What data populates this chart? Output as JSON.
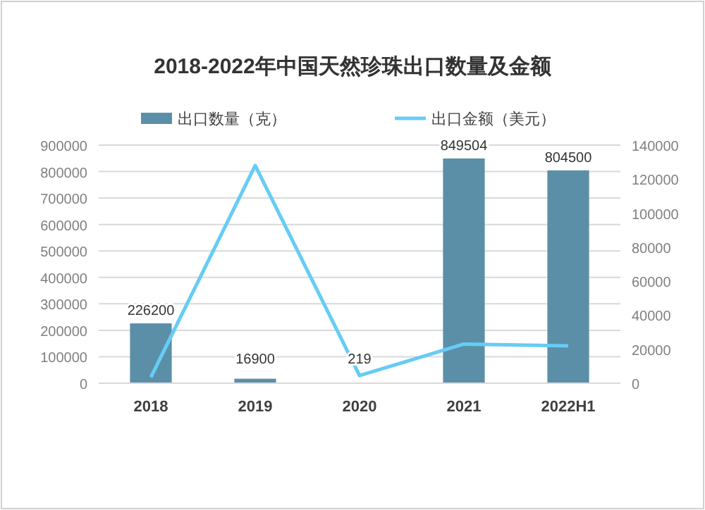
{
  "chart_data": {
    "type": "bar",
    "title": "2018-2022年中国天然珍珠出口数量及金额",
    "categories": [
      "2018",
      "2019",
      "2020",
      "2021",
      "2022H1"
    ],
    "series": [
      {
        "name": "出口数量（克）",
        "color": "#5b8fa8",
        "values": [
          226200,
          16900,
          219,
          849504,
          804500
        ],
        "value_labels": [
          "226200",
          "16900",
          "219",
          "849504",
          "804500"
        ]
      },
      {
        "name": "出口金额（美元）",
        "type": "line",
        "axis": "y2",
        "color": "#66ccf5",
        "values": [
          3500,
          128000,
          4500,
          23000,
          22000
        ]
      }
    ],
    "ylim": [
      0,
      900000
    ],
    "yticks": [
      0,
      100000,
      200000,
      300000,
      400000,
      500000,
      600000,
      700000,
      800000,
      900000
    ],
    "y2lim": [
      0,
      140000
    ],
    "y2ticks": [
      0,
      20000,
      40000,
      60000,
      80000,
      100000,
      120000,
      140000
    ],
    "grid": "y",
    "legend": "top",
    "marker": "none"
  }
}
